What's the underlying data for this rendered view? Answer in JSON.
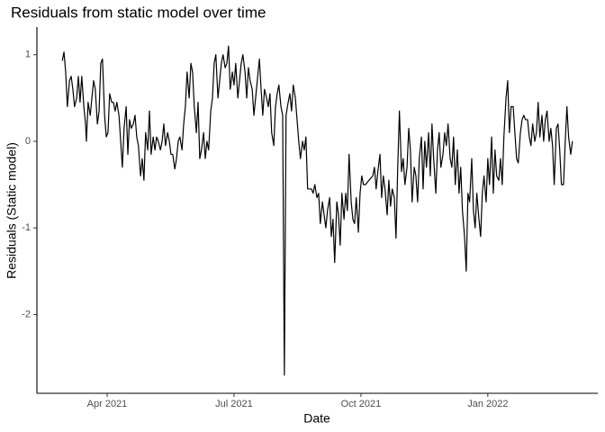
{
  "chart_data": {
    "type": "line",
    "title": "Residuals from static model over time",
    "x_label": "Date",
    "y_label": "Residuals (Static model)",
    "color": "#000000",
    "x": [
      1.94,
      1.98,
      2.02,
      2.06,
      2.11,
      2.15,
      2.19,
      2.23,
      2.28,
      2.32,
      2.36,
      2.4,
      2.45,
      2.49,
      2.51,
      2.55,
      2.6,
      2.64,
      2.68,
      2.72,
      2.77,
      2.81,
      2.85,
      2.89,
      2.94,
      2.98,
      3.02,
      3.06,
      3.11,
      3.15,
      3.19,
      3.23,
      3.28,
      3.32,
      3.36,
      3.4,
      3.45,
      3.49,
      3.53,
      3.57,
      3.62,
      3.66,
      3.7,
      3.74,
      3.79,
      3.83,
      3.87,
      3.91,
      3.96,
      4.0,
      4.04,
      4.09,
      4.13,
      4.17,
      4.21,
      4.26,
      4.3,
      4.34,
      4.38,
      4.43,
      4.47,
      4.51,
      4.55,
      4.6,
      4.64,
      4.68,
      4.72,
      4.77,
      4.81,
      4.85,
      4.89,
      4.94,
      4.98,
      5.02,
      5.06,
      5.11,
      5.15,
      5.19,
      5.23,
      5.28,
      5.32,
      5.36,
      5.4,
      5.45,
      5.49,
      5.53,
      5.57,
      5.62,
      5.66,
      5.7,
      5.74,
      5.79,
      5.83,
      5.87,
      5.91,
      5.96,
      6.0,
      6.04,
      6.09,
      6.13,
      6.17,
      6.21,
      6.26,
      6.3,
      6.34,
      6.38,
      6.43,
      6.47,
      6.51,
      6.55,
      6.6,
      6.64,
      6.68,
      6.72,
      6.77,
      6.81,
      6.85,
      6.89,
      6.94,
      6.98,
      7.02,
      7.06,
      7.11,
      7.15,
      7.19,
      7.23,
      7.28,
      7.32,
      7.36,
      7.4,
      7.45,
      7.49,
      7.53,
      7.57,
      7.62,
      7.66,
      7.7,
      7.74,
      7.79,
      7.83,
      7.87,
      7.91,
      7.96,
      8.0,
      8.04,
      8.09,
      8.13,
      8.17,
      8.21,
      8.26,
      8.3,
      8.34,
      8.38,
      8.43,
      8.47,
      8.51,
      8.55,
      8.6,
      8.64,
      8.68,
      8.72,
      8.77,
      8.81,
      8.85,
      8.89,
      8.94,
      8.98,
      9.02,
      9.06,
      9.11,
      9.19,
      9.28,
      9.32,
      9.36,
      9.4,
      9.45,
      9.49,
      9.53,
      9.57,
      9.62,
      9.66,
      9.7,
      9.74,
      9.79,
      9.83,
      9.87,
      9.91,
      9.96,
      10.0,
      10.04,
      10.09,
      10.13,
      10.17,
      10.21,
      10.26,
      10.3,
      10.34,
      10.38,
      10.43,
      10.47,
      10.51,
      10.55,
      10.6,
      10.64,
      10.68,
      10.72,
      10.77,
      10.81,
      10.85,
      10.89,
      10.94,
      10.98,
      11.02,
      11.06,
      11.11,
      11.15,
      11.19,
      11.23,
      11.28,
      11.32,
      11.36,
      11.4,
      11.45,
      11.49,
      11.53,
      11.57,
      11.62,
      11.66,
      11.7,
      11.74,
      11.79,
      11.83,
      11.87,
      11.91,
      11.96,
      12.0,
      12.04,
      12.09,
      12.13,
      12.17,
      12.21,
      12.26,
      12.3,
      12.34,
      12.38,
      12.43,
      12.47,
      12.51,
      12.55,
      12.6,
      12.64,
      12.68,
      12.72,
      12.77,
      12.81,
      12.85,
      12.89,
      12.94,
      12.98,
      13.02,
      13.06,
      13.11,
      13.15,
      13.19,
      13.23,
      13.28,
      13.32,
      13.36,
      13.4,
      13.45,
      13.49,
      13.53,
      13.57,
      13.62,
      13.66,
      13.7,
      13.74,
      13.79,
      13.83,
      13.87,
      13.91,
      13.96,
      14.0
    ],
    "values": [
      0.93,
      1.03,
      0.8,
      0.4,
      0.7,
      0.75,
      0.6,
      0.4,
      0.5,
      0.75,
      0.45,
      0.75,
      0.4,
      0.2,
      0.0,
      0.45,
      0.3,
      0.5,
      0.7,
      0.6,
      0.2,
      0.35,
      0.9,
      0.95,
      0.3,
      0.05,
      0.1,
      0.55,
      0.45,
      0.45,
      0.35,
      0.45,
      0.3,
      0.0,
      -0.3,
      0.15,
      0.4,
      -0.15,
      0.25,
      0.15,
      0.2,
      0.3,
      0.05,
      -0.05,
      -0.4,
      -0.2,
      -0.45,
      0.1,
      -0.1,
      0.35,
      -0.15,
      0.05,
      -0.1,
      0.05,
      0.0,
      -0.1,
      0.0,
      0.2,
      -0.05,
      0.1,
      0.0,
      -0.15,
      -0.15,
      -0.32,
      -0.2,
      0.0,
      0.05,
      -0.1,
      0.2,
      0.4,
      0.8,
      0.5,
      0.9,
      0.8,
      0.4,
      0.1,
      0.45,
      -0.2,
      -0.1,
      0.1,
      -0.2,
      0.0,
      -0.1,
      0.35,
      0.5,
      0.9,
      1.0,
      0.5,
      0.7,
      0.9,
      1.0,
      0.85,
      0.9,
      1.1,
      0.6,
      0.8,
      0.65,
      0.9,
      0.5,
      0.7,
      0.9,
      1.0,
      0.8,
      0.5,
      0.85,
      0.7,
      0.6,
      0.3,
      0.5,
      0.7,
      0.95,
      0.6,
      0.3,
      0.6,
      0.5,
      0.4,
      0.55,
      0.1,
      -0.05,
      0.4,
      0.55,
      0.65,
      0.4,
      0.3,
      -2.7,
      0.3,
      0.45,
      0.55,
      0.35,
      0.65,
      0.5,
      0.25,
      0.0,
      -0.2,
      0.0,
      -0.1,
      0.05,
      -0.55,
      -0.55,
      -0.55,
      -0.6,
      -0.5,
      -0.65,
      -0.6,
      -0.95,
      -0.7,
      -0.85,
      -1.0,
      -0.8,
      -0.65,
      -1.1,
      -0.9,
      -1.4,
      -0.7,
      -0.85,
      -1.2,
      -0.6,
      -0.9,
      -0.6,
      -0.8,
      -0.15,
      -0.7,
      -0.9,
      -0.95,
      -0.65,
      -1.05,
      -0.6,
      -0.4,
      -0.5,
      -0.5,
      -0.45,
      -0.4,
      -0.3,
      -0.55,
      -0.35,
      -0.15,
      -0.65,
      -0.4,
      -0.55,
      -0.85,
      -0.45,
      -0.75,
      -0.55,
      -0.65,
      -1.12,
      -0.3,
      0.35,
      -0.35,
      -0.2,
      -0.5,
      -0.3,
      0.15,
      -0.1,
      -0.7,
      -0.3,
      -0.4,
      -0.7,
      -0.2,
      0.05,
      -0.55,
      0.0,
      -0.3,
      0.1,
      -0.4,
      0.2,
      -0.2,
      -0.6,
      -0.1,
      0.1,
      -0.3,
      -0.15,
      0.1,
      -0.05,
      0.2,
      -0.2,
      -0.3,
      0.05,
      -0.5,
      -0.1,
      -0.6,
      -0.3,
      -0.8,
      -1.1,
      -1.5,
      -0.6,
      -0.7,
      -0.2,
      -0.8,
      -1.0,
      -0.6,
      -0.9,
      -1.1,
      -0.6,
      -0.4,
      -0.7,
      -0.2,
      -0.5,
      0.05,
      -0.6,
      -0.1,
      -0.4,
      -0.45,
      -0.2,
      -0.5,
      0.05,
      0.5,
      0.7,
      0.1,
      0.4,
      0.4,
      0.1,
      -0.2,
      -0.25,
      0.1,
      0.25,
      0.3,
      0.25,
      0.25,
      0.05,
      -0.05,
      0.2,
      0.0,
      0.1,
      0.45,
      0.05,
      0.3,
      0.0,
      0.25,
      0.35,
      0.0,
      0.15,
      -0.05,
      -0.5,
      0.15,
      0.2,
      -0.1,
      -0.5,
      -0.5,
      0.0,
      0.4,
      0.05,
      -0.15,
      0.0
    ],
    "xlim": [
      1.34,
      14.6
    ],
    "xticks": [
      {
        "value": 3,
        "label": "Apr 2021"
      },
      {
        "value": 6,
        "label": "Jul 2021"
      },
      {
        "value": 9,
        "label": "Oct 2021"
      },
      {
        "value": 12,
        "label": "Jan 2022"
      }
    ],
    "ylim": [
      -2.91,
      1.32
    ],
    "yticks": [
      -2,
      -1,
      0,
      1
    ],
    "grid": false
  }
}
